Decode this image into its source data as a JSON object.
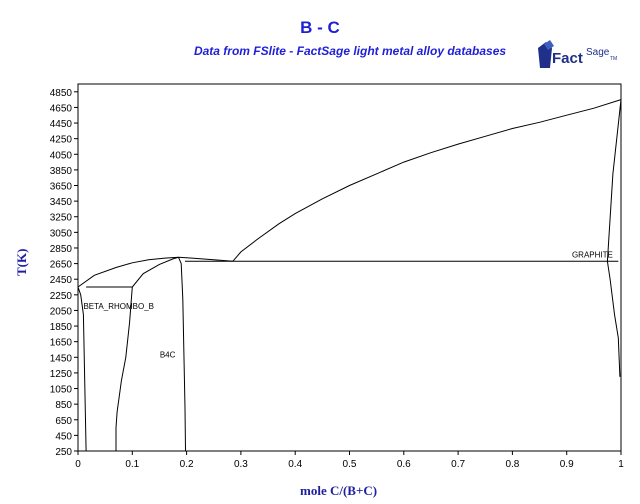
{
  "header": {
    "title": "B - C",
    "subtitle": "Data from FSlite - FactSage light metal alloy databases"
  },
  "logo": {
    "name": "FactSage logo",
    "text_main": "Fact",
    "text_sup": "Sage",
    "trademark": "TM"
  },
  "colors": {
    "accent": "#1f1fd6",
    "axis_label": "#1f1fa0",
    "line": "#000000"
  },
  "chart_data": {
    "type": "line",
    "xlabel": "mole C/(B+C)",
    "ylabel": "T(K)",
    "xlim": [
      0,
      1
    ],
    "ylim": [
      250,
      4950
    ],
    "x_ticks": [
      0,
      0.1,
      0.2,
      0.3,
      0.4,
      0.5,
      0.6,
      0.7,
      0.8,
      0.9,
      1
    ],
    "x_tick_labels": [
      "0",
      "0.1",
      "0.2",
      "0.3",
      "0.4",
      "0.5",
      "0.6",
      "0.7",
      "0.8",
      "0.9",
      "1"
    ],
    "y_ticks": [
      250,
      450,
      650,
      850,
      1050,
      1250,
      1450,
      1650,
      1850,
      2050,
      2250,
      2450,
      2650,
      2850,
      3050,
      3250,
      3450,
      3650,
      3850,
      4050,
      4250,
      4450,
      4650,
      4850
    ],
    "y_tick_labels": [
      "250",
      "450",
      "650",
      "850",
      "1050",
      "1250",
      "1450",
      "1650",
      "1850",
      "2050",
      "2250",
      "2450",
      "2650",
      "2850",
      "3050",
      "3250",
      "3450",
      "3650",
      "3850",
      "4050",
      "4250",
      "4450",
      "4650",
      "4850"
    ],
    "grid": false,
    "region_labels": [
      {
        "text": "BETA_RHOMBO_B",
        "x": 0.075,
        "y": 2070
      },
      {
        "text": "B4C",
        "x": 0.165,
        "y": 1450
      },
      {
        "text": "GRAPHITE",
        "x": 0.985,
        "y": 2730
      }
    ],
    "series": [
      {
        "x": [
          0.0,
          0.03,
          0.07,
          0.1,
          0.13,
          0.16,
          0.185,
          0.21,
          0.25,
          0.285
        ],
        "y": [
          2350,
          2500,
          2600,
          2660,
          2700,
          2720,
          2730,
          2720,
          2700,
          2680
        ]
      },
      {
        "x": [
          0.285,
          0.3,
          0.33,
          0.37,
          0.4,
          0.45,
          0.5,
          0.55,
          0.6,
          0.65,
          0.7,
          0.75,
          0.8,
          0.85,
          0.9,
          0.95,
          1.0
        ],
        "y": [
          2680,
          2800,
          2960,
          3160,
          3290,
          3480,
          3650,
          3800,
          3950,
          4070,
          4180,
          4280,
          4380,
          4460,
          4550,
          4640,
          4750
        ]
      },
      {
        "x": [
          0.0,
          0.005,
          0.01,
          0.015
        ],
        "y": [
          2350,
          2250,
          2000,
          250
        ]
      },
      {
        "x": [
          0.0,
          0.0
        ],
        "y": [
          2350,
          250
        ]
      },
      {
        "x": [
          0.015,
          0.1
        ],
        "y": [
          2350,
          2350
        ]
      },
      {
        "x": [
          0.1,
          0.12,
          0.15,
          0.175,
          0.185
        ],
        "y": [
          2350,
          2520,
          2640,
          2710,
          2730
        ]
      },
      {
        "x": [
          0.1,
          0.095,
          0.088,
          0.08,
          0.072,
          0.07,
          0.07
        ],
        "y": [
          2350,
          1900,
          1450,
          1150,
          750,
          550,
          250
        ]
      },
      {
        "x": [
          0.185,
          0.19,
          0.193,
          0.195,
          0.197,
          0.198
        ],
        "y": [
          2730,
          2650,
          2200,
          1500,
          800,
          250
        ]
      },
      {
        "x": [
          0.197,
          0.995
        ],
        "y": [
          2680,
          2680
        ]
      },
      {
        "x": [
          0.975,
          0.985,
          1.0
        ],
        "y": [
          2680,
          3800,
          4750
        ]
      },
      {
        "x": [
          0.975,
          0.98,
          0.988,
          0.995,
          0.998
        ],
        "y": [
          2680,
          2450,
          2000,
          1700,
          1200
        ]
      }
    ]
  }
}
